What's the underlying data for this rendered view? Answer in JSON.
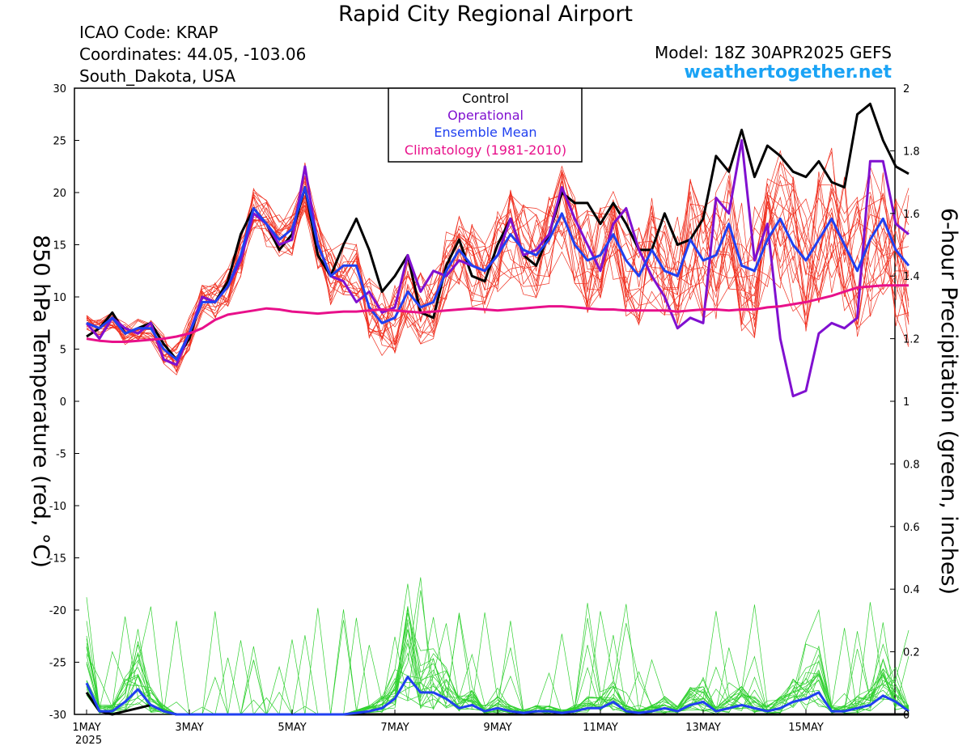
{
  "header": {
    "title": "Rapid City Regional Airport",
    "icao": "ICAO Code: KRAP",
    "coords": "Coordinates: 44.05, -103.06",
    "region": "South_Dakota, USA",
    "model": "Model: 18Z 30APR2025 GEFS",
    "site": "weathertogether.net"
  },
  "colors": {
    "control": "#000000",
    "operational": "#8010d0",
    "mean": "#2040f0",
    "climatology": "#e8108a",
    "members_temp": "#f03020",
    "members_precip": "#30d030",
    "site": "#1aa3f5"
  },
  "chart_data": {
    "type": "line",
    "ylabel": "850 hPa Temperature (red, °C)",
    "y2label": "6-hour Precipitation (green, inches)",
    "ylim": [
      -30,
      30
    ],
    "y2lim": [
      0,
      2
    ],
    "y_ticks": [
      "30",
      "25",
      "20",
      "15",
      "10",
      "5",
      "0",
      "-5",
      "-10",
      "-15",
      "-20",
      "-25",
      "-30"
    ],
    "y2_ticks": [
      "2",
      "1.8",
      "1.6",
      "1.4",
      "1.2",
      "1",
      "0.8",
      "0.6",
      "0.4",
      "0.2",
      "0"
    ],
    "x_ticks": [
      {
        "label": "1MAY",
        "day": 1,
        "sub": "2025"
      },
      {
        "label": "3MAY",
        "day": 3
      },
      {
        "label": "5MAY",
        "day": 5
      },
      {
        "label": "7MAY",
        "day": 7
      },
      {
        "label": "9MAY",
        "day": 9
      },
      {
        "label": "11MAY",
        "day": 11
      },
      {
        "label": "13MAY",
        "day": 13
      },
      {
        "label": "15MAY",
        "day": 15
      }
    ],
    "xlim_days": [
      1,
      16.75
    ],
    "x_step_days": 0.25,
    "legend": [
      "Control",
      "Operational",
      "Ensemble Mean",
      "Climatology (1981-2010)"
    ],
    "series_temp": [
      {
        "name": "Control",
        "values": [
          6.2,
          7,
          8.5,
          6.5,
          7,
          7.5,
          5.5,
          4,
          6,
          10,
          9.5,
          11.5,
          16,
          18.5,
          17,
          14.5,
          16,
          20.5,
          14,
          12,
          15,
          17.5,
          14.5,
          10.5,
          12,
          14,
          8.5,
          8,
          13,
          15.5,
          12,
          11.5,
          15,
          17.5,
          14,
          13,
          16,
          20,
          19,
          19,
          17,
          19,
          17,
          14.5,
          14.5,
          18,
          15,
          15.5,
          17.5,
          23.5,
          22,
          26,
          21.5,
          24.5,
          23.5,
          22,
          21.5,
          23,
          21,
          20.5,
          27.5,
          28.5,
          25,
          22.5,
          21.8
        ]
      },
      {
        "name": "Operational",
        "values": [
          7.5,
          6,
          8,
          7,
          6.5,
          7.5,
          4,
          3.5,
          6.5,
          10,
          9.5,
          11,
          13.5,
          18,
          17,
          15,
          15.5,
          22.5,
          15,
          12,
          11.5,
          9.5,
          10.5,
          8.5,
          9,
          14,
          10.5,
          12.5,
          12,
          13.5,
          13,
          12.5,
          14,
          17.5,
          14,
          14.5,
          16,
          20.5,
          17.5,
          15,
          12.5,
          17,
          18.5,
          14.5,
          12,
          10,
          7,
          8,
          7.5,
          19.5,
          18,
          25,
          13.5,
          17,
          6,
          0.5,
          1,
          6.5,
          7.5,
          7,
          8,
          23,
          23,
          17,
          16
        ]
      },
      {
        "name": "Ensemble Mean",
        "values": [
          7.5,
          7,
          8,
          6.5,
          7,
          7,
          5,
          4,
          6.5,
          9.5,
          9.5,
          11,
          14,
          18.5,
          17,
          15.5,
          16.5,
          20.5,
          15,
          12,
          13,
          13,
          9,
          7.5,
          8,
          10.5,
          9,
          9.5,
          12.5,
          14.5,
          13,
          12.5,
          14,
          16,
          14.5,
          14,
          15.5,
          18,
          15,
          13.5,
          14,
          16,
          13.5,
          12,
          14.5,
          12.5,
          12,
          15.5,
          13.5,
          14,
          17,
          13,
          12.5,
          15.5,
          17.5,
          15,
          13.5,
          15.5,
          17.5,
          15,
          12.5,
          15.5,
          17.5,
          14.5,
          13
        ]
      },
      {
        "name": "Climatology (1981-2010)",
        "values": [
          6,
          5.8,
          5.7,
          5.7,
          5.8,
          5.9,
          6,
          6.2,
          6.5,
          7,
          7.8,
          8.3,
          8.5,
          8.7,
          8.9,
          8.8,
          8.6,
          8.5,
          8.4,
          8.5,
          8.6,
          8.6,
          8.7,
          8.8,
          8.7,
          8.6,
          8.5,
          8.6,
          8.7,
          8.8,
          8.9,
          8.8,
          8.7,
          8.8,
          8.9,
          9,
          9.1,
          9.1,
          9.0,
          8.9,
          8.8,
          8.8,
          8.7,
          8.7,
          8.7,
          8.7,
          8.6,
          8.7,
          8.8,
          8.8,
          8.7,
          8.8,
          8.8,
          9,
          9.1,
          9.3,
          9.5,
          9.8,
          10.1,
          10.5,
          10.9,
          11,
          11.1,
          11.1,
          11.1
        ]
      }
    ],
    "series_precip": [
      {
        "name": "Control",
        "values": [
          0.07,
          0.01,
          0,
          0.01,
          0.02,
          0.03,
          0.01,
          0,
          0,
          0,
          0,
          0,
          0,
          0,
          0,
          0,
          0,
          0,
          0,
          0,
          0,
          0,
          0,
          0,
          0,
          0,
          0,
          0,
          0,
          0,
          0,
          0,
          0,
          0,
          0,
          0,
          0,
          0,
          0,
          0,
          0,
          0,
          0,
          0,
          0,
          0,
          0,
          0,
          0,
          0,
          0,
          0,
          0,
          0,
          0,
          0,
          0,
          0,
          0,
          0,
          0,
          0,
          0,
          0,
          0
        ]
      },
      {
        "name": "Ensemble Mean",
        "values": [
          0.1,
          0.01,
          0.01,
          0.04,
          0.08,
          0.03,
          0.01,
          0,
          0,
          0,
          0,
          0,
          0,
          0,
          0,
          0,
          0,
          0,
          0,
          0,
          0,
          0.005,
          0.01,
          0.02,
          0.05,
          0.12,
          0.07,
          0.07,
          0.05,
          0.02,
          0.03,
          0.01,
          0.02,
          0.01,
          0.005,
          0.01,
          0.01,
          0.005,
          0.01,
          0.02,
          0.02,
          0.04,
          0.01,
          0.005,
          0.01,
          0.02,
          0.01,
          0.03,
          0.04,
          0.01,
          0.02,
          0.03,
          0.02,
          0.01,
          0.02,
          0.04,
          0.05,
          0.07,
          0.01,
          0.01,
          0.02,
          0.03,
          0.06,
          0.04,
          0.01
        ]
      }
    ]
  }
}
